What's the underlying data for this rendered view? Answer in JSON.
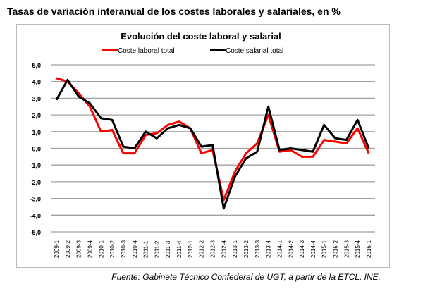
{
  "page_title": "Tasas de variación interanual de los costes laborales y salariales, en %",
  "source": "Fuente: Gabinete Técnico Confederal de UGT, a partir de la ETCL, INE.",
  "chart_data": {
    "type": "line",
    "title": "Evolución del coste laboral y salarial",
    "xlabel": "",
    "ylabel": "",
    "ylim": [
      -5,
      5
    ],
    "yticks": [
      5,
      4,
      3,
      2,
      1,
      0,
      -1,
      -2,
      -3,
      -4,
      -5
    ],
    "ytick_labels": [
      "5,0",
      "4,0",
      "3,0",
      "2,0",
      "1,0",
      "0,0",
      "-1,0",
      "-2,0",
      "-3,0",
      "-4,0",
      "-5,0"
    ],
    "grid": true,
    "legend_position": "top",
    "categories": [
      "2009-1",
      "2009-2",
      "2009-3",
      "2009-4",
      "2010-1",
      "2010-2",
      "2010-3",
      "2010-4",
      "2011-1",
      "2011-2",
      "2011-3",
      "2011-4",
      "2012-1",
      "2012-2",
      "2012-3",
      "2012-4",
      "2013-1",
      "2013-2",
      "2013-3",
      "2013-4",
      "2014-1",
      "2014-2",
      "2014-3",
      "2014-4",
      "2015-1",
      "2015-2",
      "2015-3",
      "2015-4",
      "2016-1"
    ],
    "series": [
      {
        "name": "Coste laboral total",
        "color": "#ff0000",
        "values": [
          4.2,
          4.0,
          3.3,
          2.5,
          1.0,
          1.1,
          -0.3,
          -0.3,
          0.8,
          0.9,
          1.4,
          1.6,
          1.2,
          -0.3,
          -0.1,
          -3.1,
          -1.4,
          -0.3,
          0.3,
          2.0,
          -0.2,
          -0.1,
          -0.5,
          -0.5,
          0.5,
          0.4,
          0.3,
          1.2,
          -0.3
        ]
      },
      {
        "name": "Coste salarial total",
        "color": "#000000",
        "values": [
          2.9,
          4.1,
          3.1,
          2.7,
          1.8,
          1.7,
          0.1,
          0.0,
          1.0,
          0.6,
          1.2,
          1.4,
          1.2,
          0.1,
          0.2,
          -3.6,
          -1.7,
          -0.6,
          -0.2,
          2.5,
          -0.1,
          0.0,
          -0.1,
          -0.2,
          1.4,
          0.6,
          0.5,
          1.7,
          0.0
        ]
      }
    ]
  }
}
